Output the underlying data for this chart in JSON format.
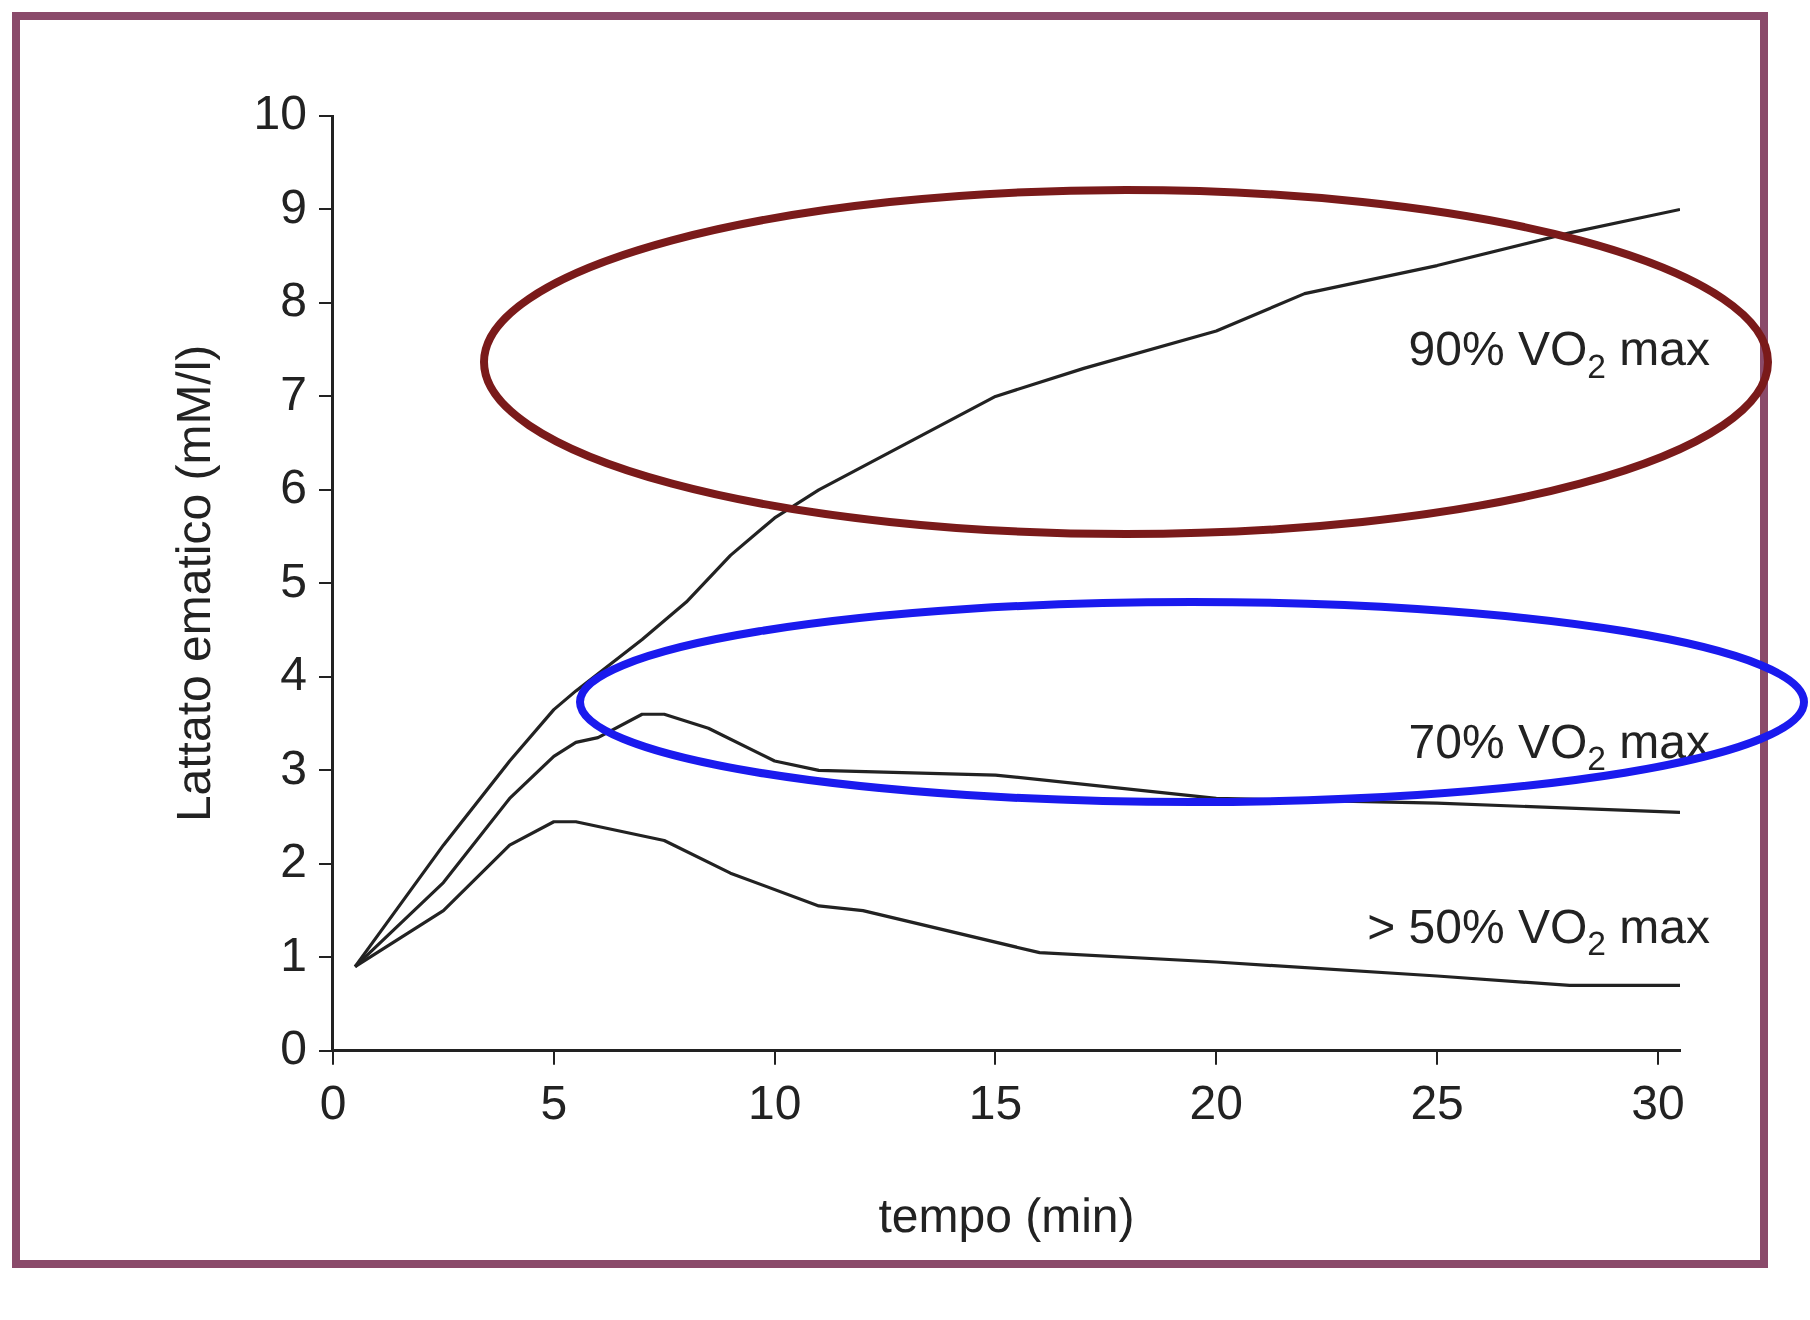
{
  "chart_data": {
    "type": "line",
    "xlabel": "tempo (min)",
    "ylabel": "Lattato ematico (mM/l)",
    "xlim": [
      0,
      30.5
    ],
    "xticks": [
      0,
      5,
      10,
      15,
      20,
      25,
      30
    ],
    "ylim": [
      0,
      10
    ],
    "yticks": [
      0,
      1,
      2,
      3,
      4,
      5,
      6,
      7,
      8,
      9,
      10
    ],
    "grid": false,
    "legend": false,
    "marker": "none",
    "line_style": "solid",
    "series": [
      {
        "name": "90% VO$_{2}$ max",
        "color": "#222222",
        "x": [
          0.5,
          2.5,
          4,
          5,
          5.5,
          7,
          8,
          9,
          10,
          11,
          13,
          15,
          17,
          20,
          22,
          25,
          28,
          30.5
        ],
        "values": [
          0.9,
          2.2,
          3.1,
          3.65,
          3.85,
          4.4,
          4.8,
          5.3,
          5.7,
          6.0,
          6.5,
          7.0,
          7.3,
          7.7,
          8.1,
          8.4,
          8.75,
          9.0
        ]
      },
      {
        "name": "70% VO$_{2}$ max",
        "color": "#222222",
        "x": [
          0.5,
          2.5,
          4,
          5,
          5.5,
          6,
          7,
          7.5,
          8.5,
          10,
          11,
          15,
          20,
          25,
          30.5
        ],
        "values": [
          0.9,
          1.8,
          2.7,
          3.15,
          3.3,
          3.35,
          3.6,
          3.6,
          3.45,
          3.1,
          3.0,
          2.95,
          2.7,
          2.65,
          2.55
        ]
      },
      {
        "name": "> 50% VO$_{2}$ max",
        "color": "#222222",
        "x": [
          0.5,
          2.5,
          4,
          5,
          5.5,
          7.5,
          9,
          11,
          12,
          16,
          20,
          25,
          28,
          30.5
        ],
        "values": [
          0.9,
          1.5,
          2.2,
          2.45,
          2.45,
          2.25,
          1.9,
          1.55,
          1.5,
          1.05,
          0.95,
          0.8,
          0.7,
          0.7
        ]
      }
    ]
  }
}
